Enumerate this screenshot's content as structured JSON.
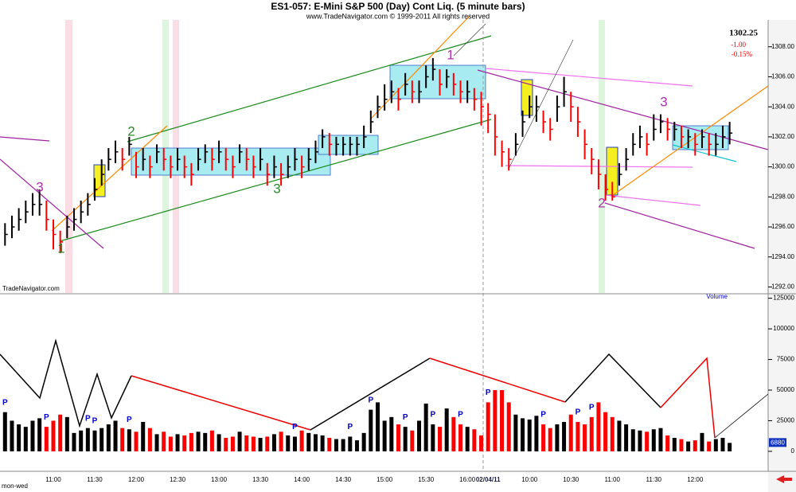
{
  "chart_data": [
    {
      "type": "hlc",
      "title": "ES1-057:  E-Mini S&P 500 (Day) Cont Liq.  (5 minute bars)",
      "subtitle": "www.TradeNavigator.com © 1999-2011 All rights reserved",
      "watermark": "TradeNavigator.com",
      "footer": "mon-wed",
      "last": 1302.25,
      "change": {
        "value": -1,
        "label": "-1.00"
      },
      "change_pct": {
        "value": -0.15,
        "label": "-0.15%"
      },
      "categories": [
        null,
        null,
        null,
        null,
        null,
        null,
        null,
        "11:00",
        null,
        null,
        null,
        null,
        null,
        "11:30",
        null,
        null,
        null,
        null,
        null,
        "12:00",
        null,
        null,
        null,
        null,
        null,
        "12:30",
        null,
        null,
        null,
        null,
        null,
        "13:00",
        null,
        null,
        null,
        null,
        null,
        "13:30",
        null,
        null,
        null,
        null,
        null,
        "14:00",
        null,
        null,
        null,
        null,
        null,
        "14:30",
        null,
        null,
        null,
        null,
        null,
        "15:00",
        null,
        null,
        null,
        null,
        null,
        "15:30",
        null,
        null,
        null,
        null,
        null,
        "16:00",
        null,
        null,
        "02/04/11",
        null,
        null,
        null,
        null,
        null,
        "10:00",
        null,
        null,
        null,
        null,
        null,
        "10:30",
        null,
        null,
        null,
        null,
        null,
        "11:00",
        null,
        null,
        null,
        null,
        null,
        "11:30",
        null,
        null,
        null,
        null,
        null,
        "12:00",
        null,
        null,
        null,
        null,
        null
      ],
      "high": [
        1296.25,
        1296.75,
        1297.25,
        1297.75,
        1298.25,
        1298.5,
        1297.75,
        1296.5,
        1295.75,
        1296.75,
        1297.25,
        1297.75,
        1298.25,
        1299.25,
        1300.5,
        1301.25,
        1301.75,
        1301.25,
        1302,
        1301,
        1301.25,
        1300.75,
        1301.5,
        1301.25,
        1300.75,
        1301.25,
        1300.75,
        1300.25,
        1301.25,
        1301.5,
        1301.25,
        1301.75,
        1301.25,
        1300.75,
        1301.5,
        1301.25,
        1300.75,
        1301.25,
        1300.25,
        1300.75,
        1300.25,
        1300.75,
        1301.25,
        1300.75,
        1301.25,
        1301.75,
        1302.5,
        1302.25,
        1302,
        1302,
        1302,
        1302,
        1302.75,
        1303.75,
        1304.75,
        1305.5,
        1305.75,
        1305.25,
        1306.25,
        1305.75,
        1305.75,
        1306.75,
        1307.25,
        1306.5,
        1306.5,
        1306.25,
        1305.75,
        1305.75,
        1305.25,
        1305,
        1304.25,
        1303.5,
        1301.75,
        1301.25,
        1302.25,
        1303.75,
        1304.75,
        1304.75,
        1303.75,
        1303.25,
        1304.75,
        1306,
        1305,
        1304,
        1302.5,
        1301.25,
        1300.5,
        1299.5,
        1299,
        1300.25,
        1301.25,
        1302.25,
        1302.75,
        1302.25,
        1303.5,
        1303.5,
        1303.25,
        1303,
        1302.75,
        1302.5,
        1302.25,
        1302.5,
        1302.25,
        1302.25,
        1302.75,
        1303
      ],
      "low": [
        1294.75,
        1295.25,
        1295.75,
        1296.25,
        1296.75,
        1296.75,
        1295.75,
        1294.5,
        1294.25,
        1295.25,
        1295.75,
        1296.25,
        1296.75,
        1297.75,
        1298.75,
        1299.75,
        1300.25,
        1299.75,
        1300.75,
        1299.25,
        1299.75,
        1299.25,
        1300.25,
        1299.75,
        1299.25,
        1299.75,
        1299.25,
        1298.75,
        1299.75,
        1300.25,
        1299.75,
        1300.25,
        1299.75,
        1299.25,
        1300.25,
        1299.75,
        1299.25,
        1299.75,
        1298.75,
        1299.25,
        1298.75,
        1299.25,
        1299.75,
        1299.25,
        1299.75,
        1300.25,
        1301.25,
        1300.75,
        1300.75,
        1300.75,
        1300.75,
        1300.75,
        1301.25,
        1302.25,
        1303.25,
        1303.75,
        1304.25,
        1303.75,
        1304.75,
        1304.25,
        1304.25,
        1305.25,
        1305.75,
        1304.75,
        1305.25,
        1304.75,
        1304.25,
        1304.25,
        1303.75,
        1302.75,
        1302.25,
        1300.75,
        1300,
        1299.75,
        1300.75,
        1302,
        1303.25,
        1303,
        1302.25,
        1301.75,
        1303,
        1304,
        1303,
        1302,
        1300.5,
        1299.5,
        1298.5,
        1297.75,
        1297.75,
        1298.75,
        1299.75,
        1300.75,
        1301.25,
        1300.75,
        1301.75,
        1302.25,
        1301.75,
        1301.75,
        1301.25,
        1301.25,
        1300.75,
        1301.25,
        1300.75,
        1300.75,
        1301.25,
        1301.5
      ],
      "close": [
        1295.5,
        1296,
        1296.5,
        1297,
        1297.5,
        1297.5,
        1296.5,
        1295.5,
        1295,
        1296,
        1296.5,
        1297,
        1297.5,
        1298.5,
        1299.5,
        1300.5,
        1301,
        1300.5,
        1301.5,
        1300,
        1300.5,
        1300,
        1301,
        1300.5,
        1300,
        1300.5,
        1300,
        1299.5,
        1300.5,
        1301,
        1300.5,
        1301,
        1300.5,
        1300,
        1301,
        1300.5,
        1300,
        1300.5,
        1299.5,
        1300,
        1299.5,
        1300,
        1300.5,
        1300,
        1300.5,
        1301,
        1302,
        1301.5,
        1301.5,
        1301.5,
        1301.5,
        1301.5,
        1302,
        1303,
        1304,
        1304.5,
        1305,
        1304.5,
        1305.5,
        1305,
        1305,
        1306,
        1306.5,
        1305.5,
        1306,
        1305.5,
        1305,
        1305,
        1304.5,
        1304,
        1303.5,
        1302,
        1301,
        1300.5,
        1301.5,
        1303,
        1304,
        1304,
        1303,
        1302.5,
        1304,
        1305,
        1304,
        1303,
        1301.5,
        1300.5,
        1299.5,
        1298.5,
        1298,
        1299.5,
        1300.5,
        1301.5,
        1302,
        1301.5,
        1302.5,
        1303,
        1302.5,
        1302.5,
        1302,
        1302,
        1301.5,
        1302,
        1301.5,
        1301.5,
        1302,
        1302.25
      ],
      "up_color": "#000000",
      "down_color": "#ff0000",
      "ylim": [
        1291.6,
        1309.1
      ],
      "yticks": [
        {
          "value": 1292,
          "label": "1292.00"
        },
        {
          "value": 1294,
          "label": "1294.00"
        },
        {
          "value": 1296,
          "label": "1296.00"
        },
        {
          "value": 1298,
          "label": "1298.00"
        },
        {
          "value": 1300,
          "label": "1300.00"
        },
        {
          "value": 1302,
          "label": "1302.00"
        },
        {
          "value": 1304,
          "label": "1304.00"
        },
        {
          "value": 1306,
          "label": "1306.00"
        },
        {
          "value": 1308,
          "label": "1308.00"
        }
      ],
      "wave_labels": [
        {
          "text": "3",
          "color": "#b030b0"
        },
        {
          "text": "1",
          "color": "#2a8a2a"
        },
        {
          "text": "2",
          "color": "#2a8a2a"
        },
        {
          "text": "3",
          "color": "#2a8a2a"
        },
        {
          "text": "1",
          "color": "#b030b0"
        },
        {
          "text": "2",
          "color": "#b030b0"
        },
        {
          "text": "3",
          "color": "#b030b0"
        }
      ]
    },
    {
      "type": "bar",
      "title": "Volume",
      "values": [
        32000,
        25000,
        22000,
        20000,
        25000,
        27000,
        20000,
        25000,
        30000,
        28000,
        15000,
        17000,
        19000,
        17000,
        19000,
        22000,
        25000,
        19000,
        18000,
        16000,
        24000,
        19000,
        14000,
        16000,
        12000,
        14000,
        13000,
        15000,
        16000,
        15000,
        17000,
        14000,
        11000,
        12000,
        16000,
        13000,
        12000,
        11000,
        12000,
        14000,
        16000,
        13000,
        12000,
        17000,
        15000,
        14000,
        13000,
        11000,
        10000,
        10000,
        12000,
        9000,
        15000,
        34000,
        40000,
        25000,
        28000,
        22000,
        20000,
        17000,
        25000,
        39000,
        22000,
        20000,
        35000,
        28000,
        22000,
        20000,
        18000,
        13000,
        40000,
        50000,
        50000,
        40000,
        30000,
        27000,
        26000,
        29000,
        22000,
        19000,
        22000,
        24000,
        30000,
        24000,
        22000,
        28000,
        40000,
        32000,
        28000,
        25000,
        22000,
        18000,
        17000,
        16000,
        18000,
        19000,
        13000,
        11000,
        10000,
        8000,
        9000,
        15000,
        8000,
        10000,
        11000,
        6880
      ],
      "ylim": [
        -15000,
        128000
      ],
      "yticks": [
        0,
        25000,
        50000,
        75000,
        100000,
        125000
      ],
      "pivot_labels": [
        "P",
        "P",
        "P",
        "P",
        "P",
        "P",
        "P",
        "P",
        "P",
        "P",
        "P",
        "P",
        "P",
        "P",
        "P"
      ],
      "pivot_color": "#0000cc"
    }
  ]
}
